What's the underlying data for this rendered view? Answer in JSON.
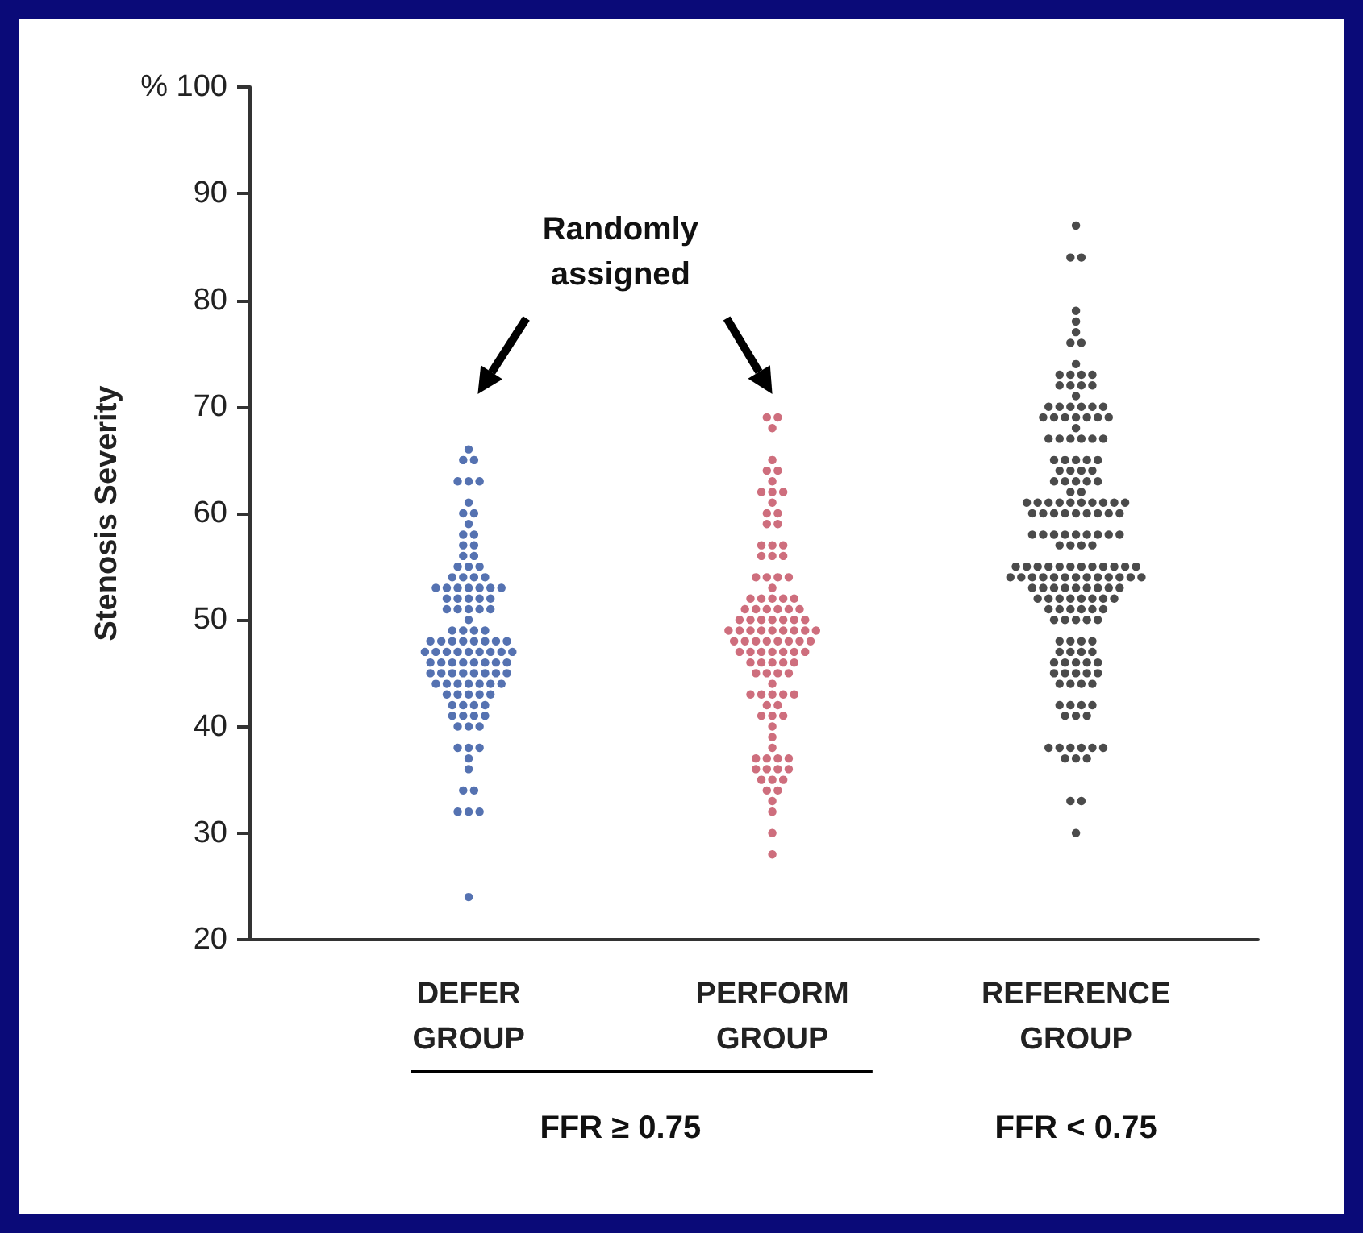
{
  "chart_data": {
    "type": "scatter",
    "ylabel": "Stenosis Severity",
    "categories": [
      "DEFER\nGROUP",
      "PERFORM\nGROUP",
      "REFERENCE\nGROUP"
    ],
    "ylim": [
      20,
      100
    ],
    "yticks": [
      20,
      30,
      40,
      50,
      60,
      70,
      80,
      90,
      {
        "value": 100,
        "label": "% 100"
      }
    ],
    "marker": "circle",
    "grid": false,
    "annotations": [
      "Randomly\nassigned",
      "FFR ≥ 0.75",
      "FFR < 0.75"
    ],
    "series": [
      {
        "color": "#2b4f9e",
        "x": [
          "DEFER\nGROUP",
          "DEFER\nGROUP",
          "DEFER\nGROUP",
          "DEFER\nGROUP",
          "DEFER\nGROUP",
          "DEFER\nGROUP",
          "DEFER\nGROUP",
          "DEFER\nGROUP",
          "DEFER\nGROUP",
          "DEFER\nGROUP",
          "DEFER\nGROUP",
          "DEFER\nGROUP",
          "DEFER\nGROUP",
          "DEFER\nGROUP",
          "DEFER\nGROUP",
          "DEFER\nGROUP",
          "DEFER\nGROUP",
          "DEFER\nGROUP",
          "DEFER\nGROUP",
          "DEFER\nGROUP",
          "DEFER\nGROUP",
          "DEFER\nGROUP",
          "DEFER\nGROUP",
          "DEFER\nGROUP",
          "DEFER\nGROUP",
          "DEFER\nGROUP",
          "DEFER\nGROUP",
          "DEFER\nGROUP",
          "DEFER\nGROUP",
          "DEFER\nGROUP",
          "DEFER\nGROUP",
          "DEFER\nGROUP",
          "DEFER\nGROUP",
          "DEFER\nGROUP",
          "DEFER\nGROUP",
          "DEFER\nGROUP",
          "DEFER\nGROUP",
          "DEFER\nGROUP",
          "DEFER\nGROUP",
          "DEFER\nGROUP",
          "DEFER\nGROUP",
          "DEFER\nGROUP",
          "DEFER\nGROUP",
          "DEFER\nGROUP",
          "DEFER\nGROUP",
          "DEFER\nGROUP",
          "DEFER\nGROUP",
          "DEFER\nGROUP",
          "DEFER\nGROUP",
          "DEFER\nGROUP",
          "DEFER\nGROUP",
          "DEFER\nGROUP",
          "DEFER\nGROUP",
          "DEFER\nGROUP",
          "DEFER\nGROUP",
          "DEFER\nGROUP",
          "DEFER\nGROUP",
          "DEFER\nGROUP",
          "DEFER\nGROUP",
          "DEFER\nGROUP",
          "DEFER\nGROUP",
          "DEFER\nGROUP",
          "DEFER\nGROUP",
          "DEFER\nGROUP",
          "DEFER\nGROUP",
          "DEFER\nGROUP",
          "DEFER\nGROUP",
          "DEFER\nGROUP",
          "DEFER\nGROUP",
          "DEFER\nGROUP",
          "DEFER\nGROUP",
          "DEFER\nGROUP",
          "DEFER\nGROUP",
          "DEFER\nGROUP",
          "DEFER\nGROUP",
          "DEFER\nGROUP",
          "DEFER\nGROUP",
          "DEFER\nGROUP",
          "DEFER\nGROUP",
          "DEFER\nGROUP",
          "DEFER\nGROUP",
          "DEFER\nGROUP",
          "DEFER\nGROUP",
          "DEFER\nGROUP",
          "DEFER\nGROUP",
          "DEFER\nGROUP",
          "DEFER\nGROUP",
          "DEFER\nGROUP",
          "DEFER\nGROUP",
          "DEFER\nGROUP",
          "DEFER\nGROUP",
          "DEFER\nGROUP",
          "DEFER\nGROUP",
          "DEFER\nGROUP",
          "DEFER\nGROUP",
          "DEFER\nGROUP",
          "DEFER\nGROUP",
          "DEFER\nGROUP",
          "DEFER\nGROUP",
          "DEFER\nGROUP",
          "DEFER\nGROUP",
          "DEFER\nGROUP",
          "DEFER\nGROUP",
          "DEFER\nGROUP",
          "DEFER\nGROUP",
          "DEFER\nGROUP",
          "DEFER\nGROUP",
          "DEFER\nGROUP",
          "DEFER\nGROUP",
          "DEFER\nGROUP",
          "DEFER\nGROUP",
          "DEFER\nGROUP"
        ],
        "values": [
          66,
          65,
          65,
          63,
          63,
          63,
          61,
          60,
          60,
          59,
          58,
          58,
          57,
          57,
          56,
          56,
          55,
          55,
          55,
          54,
          54,
          54,
          54,
          53,
          53,
          53,
          53,
          53,
          53,
          53,
          52,
          52,
          52,
          52,
          52,
          51,
          51,
          51,
          51,
          51,
          50,
          49,
          49,
          49,
          49,
          48,
          48,
          48,
          48,
          48,
          48,
          48,
          48,
          47,
          47,
          47,
          47,
          47,
          47,
          47,
          47,
          47,
          46,
          46,
          46,
          46,
          46,
          46,
          46,
          46,
          45,
          45,
          45,
          45,
          45,
          45,
          45,
          45,
          44,
          44,
          44,
          44,
          44,
          44,
          44,
          43,
          43,
          43,
          43,
          43,
          42,
          42,
          42,
          42,
          41,
          41,
          41,
          41,
          40,
          40,
          40,
          38,
          38,
          38,
          37,
          36,
          34,
          34,
          32,
          32,
          32,
          24
        ]
      },
      {
        "color": "#c24a5c",
        "x": [
          "PERFORM\nGROUP",
          "PERFORM\nGROUP",
          "PERFORM\nGROUP",
          "PERFORM\nGROUP",
          "PERFORM\nGROUP",
          "PERFORM\nGROUP",
          "PERFORM\nGROUP",
          "PERFORM\nGROUP",
          "PERFORM\nGROUP",
          "PERFORM\nGROUP",
          "PERFORM\nGROUP",
          "PERFORM\nGROUP",
          "PERFORM\nGROUP",
          "PERFORM\nGROUP",
          "PERFORM\nGROUP",
          "PERFORM\nGROUP",
          "PERFORM\nGROUP",
          "PERFORM\nGROUP",
          "PERFORM\nGROUP",
          "PERFORM\nGROUP",
          "PERFORM\nGROUP",
          "PERFORM\nGROUP",
          "PERFORM\nGROUP",
          "PERFORM\nGROUP",
          "PERFORM\nGROUP",
          "PERFORM\nGROUP",
          "PERFORM\nGROUP",
          "PERFORM\nGROUP",
          "PERFORM\nGROUP",
          "PERFORM\nGROUP",
          "PERFORM\nGROUP",
          "PERFORM\nGROUP",
          "PERFORM\nGROUP",
          "PERFORM\nGROUP",
          "PERFORM\nGROUP",
          "PERFORM\nGROUP",
          "PERFORM\nGROUP",
          "PERFORM\nGROUP",
          "PERFORM\nGROUP",
          "PERFORM\nGROUP",
          "PERFORM\nGROUP",
          "PERFORM\nGROUP",
          "PERFORM\nGROUP",
          "PERFORM\nGROUP",
          "PERFORM\nGROUP",
          "PERFORM\nGROUP",
          "PERFORM\nGROUP",
          "PERFORM\nGROUP",
          "PERFORM\nGROUP",
          "PERFORM\nGROUP",
          "PERFORM\nGROUP",
          "PERFORM\nGROUP",
          "PERFORM\nGROUP",
          "PERFORM\nGROUP",
          "PERFORM\nGROUP",
          "PERFORM\nGROUP",
          "PERFORM\nGROUP",
          "PERFORM\nGROUP",
          "PERFORM\nGROUP",
          "PERFORM\nGROUP",
          "PERFORM\nGROUP",
          "PERFORM\nGROUP",
          "PERFORM\nGROUP",
          "PERFORM\nGROUP",
          "PERFORM\nGROUP",
          "PERFORM\nGROUP",
          "PERFORM\nGROUP",
          "PERFORM\nGROUP",
          "PERFORM\nGROUP",
          "PERFORM\nGROUP",
          "PERFORM\nGROUP",
          "PERFORM\nGROUP",
          "PERFORM\nGROUP",
          "PERFORM\nGROUP",
          "PERFORM\nGROUP",
          "PERFORM\nGROUP",
          "PERFORM\nGROUP",
          "PERFORM\nGROUP",
          "PERFORM\nGROUP",
          "PERFORM\nGROUP",
          "PERFORM\nGROUP",
          "PERFORM\nGROUP",
          "PERFORM\nGROUP",
          "PERFORM\nGROUP",
          "PERFORM\nGROUP",
          "PERFORM\nGROUP",
          "PERFORM\nGROUP",
          "PERFORM\nGROUP",
          "PERFORM\nGROUP",
          "PERFORM\nGROUP",
          "PERFORM\nGROUP",
          "PERFORM\nGROUP",
          "PERFORM\nGROUP",
          "PERFORM\nGROUP",
          "PERFORM\nGROUP",
          "PERFORM\nGROUP",
          "PERFORM\nGROUP",
          "PERFORM\nGROUP",
          "PERFORM\nGROUP",
          "PERFORM\nGROUP",
          "PERFORM\nGROUP",
          "PERFORM\nGROUP",
          "PERFORM\nGROUP",
          "PERFORM\nGROUP",
          "PERFORM\nGROUP",
          "PERFORM\nGROUP",
          "PERFORM\nGROUP",
          "PERFORM\nGROUP"
        ],
        "values": [
          69,
          69,
          68,
          65,
          64,
          64,
          63,
          62,
          62,
          62,
          61,
          60,
          60,
          59,
          59,
          57,
          57,
          57,
          56,
          56,
          56,
          54,
          54,
          54,
          54,
          53,
          52,
          52,
          52,
          52,
          52,
          51,
          51,
          51,
          51,
          51,
          51,
          50,
          50,
          50,
          50,
          50,
          50,
          50,
          49,
          49,
          49,
          49,
          49,
          49,
          49,
          49,
          49,
          48,
          48,
          48,
          48,
          48,
          48,
          48,
          48,
          47,
          47,
          47,
          47,
          47,
          47,
          47,
          46,
          46,
          46,
          46,
          46,
          45,
          45,
          45,
          45,
          44,
          43,
          43,
          43,
          43,
          43,
          42,
          42,
          41,
          41,
          41,
          40,
          39,
          38,
          37,
          37,
          37,
          37,
          36,
          36,
          36,
          36,
          35,
          35,
          35,
          34,
          34,
          33,
          32,
          30,
          28
        ]
      },
      {
        "color": "#1e1e1e",
        "x": [
          "REFERENCE\nGROUP",
          "REFERENCE\nGROUP",
          "REFERENCE\nGROUP",
          "REFERENCE\nGROUP",
          "REFERENCE\nGROUP",
          "REFERENCE\nGROUP",
          "REFERENCE\nGROUP",
          "REFERENCE\nGROUP",
          "REFERENCE\nGROUP",
          "REFERENCE\nGROUP",
          "REFERENCE\nGROUP",
          "REFERENCE\nGROUP",
          "REFERENCE\nGROUP",
          "REFERENCE\nGROUP",
          "REFERENCE\nGROUP",
          "REFERENCE\nGROUP",
          "REFERENCE\nGROUP",
          "REFERENCE\nGROUP",
          "REFERENCE\nGROUP",
          "REFERENCE\nGROUP",
          "REFERENCE\nGROUP",
          "REFERENCE\nGROUP",
          "REFERENCE\nGROUP",
          "REFERENCE\nGROUP",
          "REFERENCE\nGROUP",
          "REFERENCE\nGROUP",
          "REFERENCE\nGROUP",
          "REFERENCE\nGROUP",
          "REFERENCE\nGROUP",
          "REFERENCE\nGROUP",
          "REFERENCE\nGROUP",
          "REFERENCE\nGROUP",
          "REFERENCE\nGROUP",
          "REFERENCE\nGROUP",
          "REFERENCE\nGROUP",
          "REFERENCE\nGROUP",
          "REFERENCE\nGROUP",
          "REFERENCE\nGROUP",
          "REFERENCE\nGROUP",
          "REFERENCE\nGROUP",
          "REFERENCE\nGROUP",
          "REFERENCE\nGROUP",
          "REFERENCE\nGROUP",
          "REFERENCE\nGROUP",
          "REFERENCE\nGROUP",
          "REFERENCE\nGROUP",
          "REFERENCE\nGROUP",
          "REFERENCE\nGROUP",
          "REFERENCE\nGROUP",
          "REFERENCE\nGROUP",
          "REFERENCE\nGROUP",
          "REFERENCE\nGROUP",
          "REFERENCE\nGROUP",
          "REFERENCE\nGROUP",
          "REFERENCE\nGROUP",
          "REFERENCE\nGROUP",
          "REFERENCE\nGROUP",
          "REFERENCE\nGROUP",
          "REFERENCE\nGROUP",
          "REFERENCE\nGROUP",
          "REFERENCE\nGROUP",
          "REFERENCE\nGROUP",
          "REFERENCE\nGROUP",
          "REFERENCE\nGROUP",
          "REFERENCE\nGROUP",
          "REFERENCE\nGROUP",
          "REFERENCE\nGROUP",
          "REFERENCE\nGROUP",
          "REFERENCE\nGROUP",
          "REFERENCE\nGROUP",
          "REFERENCE\nGROUP",
          "REFERENCE\nGROUP",
          "REFERENCE\nGROUP",
          "REFERENCE\nGROUP",
          "REFERENCE\nGROUP",
          "REFERENCE\nGROUP",
          "REFERENCE\nGROUP",
          "REFERENCE\nGROUP",
          "REFERENCE\nGROUP",
          "REFERENCE\nGROUP",
          "REFERENCE\nGROUP",
          "REFERENCE\nGROUP",
          "REFERENCE\nGROUP",
          "REFERENCE\nGROUP",
          "REFERENCE\nGROUP",
          "REFERENCE\nGROUP",
          "REFERENCE\nGROUP",
          "REFERENCE\nGROUP",
          "REFERENCE\nGROUP",
          "REFERENCE\nGROUP",
          "REFERENCE\nGROUP",
          "REFERENCE\nGROUP",
          "REFERENCE\nGROUP",
          "REFERENCE\nGROUP",
          "REFERENCE\nGROUP",
          "REFERENCE\nGROUP",
          "REFERENCE\nGROUP",
          "REFERENCE\nGROUP",
          "REFERENCE\nGROUP",
          "REFERENCE\nGROUP",
          "REFERENCE\nGROUP",
          "REFERENCE\nGROUP",
          "REFERENCE\nGROUP",
          "REFERENCE\nGROUP",
          "REFERENCE\nGROUP",
          "REFERENCE\nGROUP",
          "REFERENCE\nGROUP",
          "REFERENCE\nGROUP",
          "REFERENCE\nGROUP",
          "REFERENCE\nGROUP",
          "REFERENCE\nGROUP",
          "REFERENCE\nGROUP",
          "REFERENCE\nGROUP",
          "REFERENCE\nGROUP",
          "REFERENCE\nGROUP",
          "REFERENCE\nGROUP",
          "REFERENCE\nGROUP",
          "REFERENCE\nGROUP",
          "REFERENCE\nGROUP",
          "REFERENCE\nGROUP",
          "REFERENCE\nGROUP",
          "REFERENCE\nGROUP",
          "REFERENCE\nGROUP",
          "REFERENCE\nGROUP",
          "REFERENCE\nGROUP",
          "REFERENCE\nGROUP",
          "REFERENCE\nGROUP",
          "REFERENCE\nGROUP",
          "REFERENCE\nGROUP",
          "REFERENCE\nGROUP",
          "REFERENCE\nGROUP",
          "REFERENCE\nGROUP",
          "REFERENCE\nGROUP",
          "REFERENCE\nGROUP",
          "REFERENCE\nGROUP",
          "REFERENCE\nGROUP",
          "REFERENCE\nGROUP",
          "REFERENCE\nGROUP",
          "REFERENCE\nGROUP",
          "REFERENCE\nGROUP",
          "REFERENCE\nGROUP",
          "REFERENCE\nGROUP",
          "REFERENCE\nGROUP",
          "REFERENCE\nGROUP",
          "REFERENCE\nGROUP",
          "REFERENCE\nGROUP",
          "REFERENCE\nGROUP",
          "REFERENCE\nGROUP",
          "REFERENCE\nGROUP",
          "REFERENCE\nGROUP",
          "REFERENCE\nGROUP",
          "REFERENCE\nGROUP",
          "REFERENCE\nGROUP",
          "REFERENCE\nGROUP",
          "REFERENCE\nGROUP",
          "REFERENCE\nGROUP",
          "REFERENCE\nGROUP",
          "REFERENCE\nGROUP",
          "REFERENCE\nGROUP",
          "REFERENCE\nGROUP",
          "REFERENCE\nGROUP",
          "REFERENCE\nGROUP",
          "REFERENCE\nGROUP",
          "REFERENCE\nGROUP",
          "REFERENCE\nGROUP",
          "REFERENCE\nGROUP",
          "REFERENCE\nGROUP",
          "REFERENCE\nGROUP",
          "REFERENCE\nGROUP",
          "REFERENCE\nGROUP",
          "REFERENCE\nGROUP",
          "REFERENCE\nGROUP",
          "REFERENCE\nGROUP",
          "REFERENCE\nGROUP",
          "REFERENCE\nGROUP",
          "REFERENCE\nGROUP",
          "REFERENCE\nGROUP",
          "REFERENCE\nGROUP",
          "REFERENCE\nGROUP",
          "REFERENCE\nGROUP"
        ],
        "values": [
          87,
          84,
          84,
          79,
          78,
          77,
          76,
          76,
          74,
          73,
          73,
          73,
          73,
          72,
          72,
          72,
          72,
          71,
          70,
          70,
          70,
          70,
          70,
          70,
          69,
          69,
          69,
          69,
          69,
          69,
          69,
          68,
          67,
          67,
          67,
          67,
          67,
          67,
          65,
          65,
          65,
          65,
          65,
          64,
          64,
          64,
          64,
          63,
          63,
          63,
          63,
          63,
          62,
          62,
          61,
          61,
          61,
          61,
          61,
          61,
          61,
          61,
          61,
          61,
          60,
          60,
          60,
          60,
          60,
          60,
          60,
          60,
          60,
          58,
          58,
          58,
          58,
          58,
          58,
          58,
          58,
          58,
          57,
          57,
          57,
          57,
          55,
          55,
          55,
          55,
          55,
          55,
          55,
          55,
          55,
          55,
          55,
          55,
          54,
          54,
          54,
          54,
          54,
          54,
          54,
          54,
          54,
          54,
          54,
          54,
          54,
          53,
          53,
          53,
          53,
          53,
          53,
          53,
          53,
          53,
          52,
          52,
          52,
          52,
          52,
          52,
          52,
          52,
          51,
          51,
          51,
          51,
          51,
          51,
          50,
          50,
          50,
          50,
          50,
          48,
          48,
          48,
          48,
          47,
          47,
          47,
          47,
          46,
          46,
          46,
          46,
          46,
          45,
          45,
          45,
          45,
          45,
          44,
          44,
          44,
          44,
          42,
          42,
          42,
          42,
          41,
          41,
          41,
          38,
          38,
          38,
          38,
          38,
          38,
          37,
          37,
          37,
          33,
          33,
          30
        ]
      }
    ]
  }
}
